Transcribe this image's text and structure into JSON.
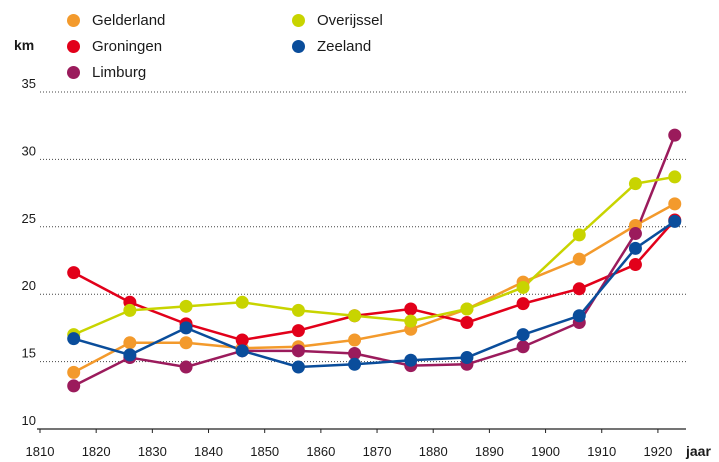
{
  "chart_data": {
    "type": "line",
    "ylabel": "km",
    "xlabel": "jaar",
    "xlim": [
      1810,
      1925
    ],
    "ylim": [
      10,
      35
    ],
    "x_ticks": [
      "1810",
      "1820",
      "1830",
      "1840",
      "1850",
      "1860",
      "1870",
      "1880",
      "1890",
      "1900",
      "1910",
      "1920"
    ],
    "y_ticks": [
      "10",
      "15",
      "20",
      "25",
      "30",
      "35"
    ],
    "grid": "horizontal",
    "legend_position": "top",
    "series": [
      {
        "name": "Gelderland",
        "color": "#F39A2C",
        "x": [
          1816,
          1826,
          1836,
          1846,
          1856,
          1866,
          1876,
          1886,
          1896,
          1906,
          1916,
          1923
        ],
        "y": [
          14.2,
          16.4,
          16.4,
          16.0,
          16.1,
          16.6,
          17.4,
          18.9,
          20.9,
          22.6,
          25.1,
          26.7
        ]
      },
      {
        "name": "Groningen",
        "color": "#E2001A",
        "x": [
          1816,
          1826,
          1836,
          1846,
          1856,
          1866,
          1876,
          1886,
          1896,
          1906,
          1916,
          1923
        ],
        "y": [
          21.6,
          19.4,
          17.8,
          16.6,
          17.3,
          18.4,
          18.9,
          17.9,
          19.3,
          20.4,
          22.2,
          25.5
        ]
      },
      {
        "name": "Limburg",
        "color": "#9B1B5C",
        "x": [
          1816,
          1826,
          1836,
          1846,
          1856,
          1866,
          1876,
          1886,
          1896,
          1906,
          1916,
          1923
        ],
        "y": [
          13.2,
          15.3,
          14.6,
          15.8,
          15.8,
          15.6,
          14.7,
          14.8,
          16.1,
          17.9,
          24.5,
          31.8
        ]
      },
      {
        "name": "Overijssel",
        "color": "#C8D400",
        "x": [
          1816,
          1826,
          1836,
          1846,
          1856,
          1866,
          1876,
          1886,
          1896,
          1906,
          1916,
          1923
        ],
        "y": [
          17.0,
          18.8,
          19.1,
          19.4,
          18.8,
          18.4,
          18.0,
          18.9,
          20.5,
          24.4,
          28.2,
          28.7
        ]
      },
      {
        "name": "Zeeland",
        "color": "#0A4D9B",
        "x": [
          1816,
          1826,
          1836,
          1846,
          1856,
          1866,
          1876,
          1886,
          1896,
          1906,
          1916,
          1923
        ],
        "y": [
          16.7,
          15.5,
          17.5,
          15.8,
          14.6,
          14.8,
          15.1,
          15.3,
          17.0,
          18.4,
          23.4,
          25.4
        ]
      }
    ]
  }
}
